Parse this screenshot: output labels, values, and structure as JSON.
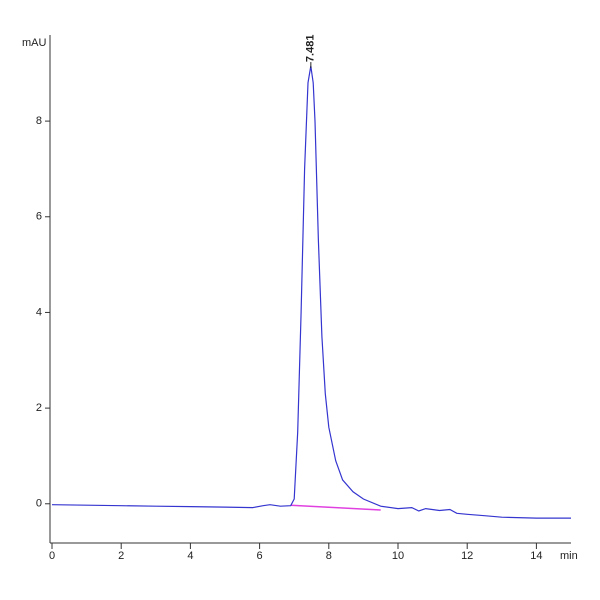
{
  "chart_data": {
    "type": "line",
    "y_label": "mAU",
    "x_label": "min",
    "xlim": [
      0,
      15
    ],
    "ylim": [
      -0.82,
      9.8
    ],
    "xticks": [
      0,
      2,
      4,
      6,
      8,
      10,
      12,
      14
    ],
    "yticks": [
      0,
      2,
      4,
      6,
      8
    ],
    "series": [
      {
        "color": "#3535d0",
        "x": [
          0,
          1,
          2,
          3,
          4,
          5,
          5.8,
          6.1,
          6.3,
          6.6,
          6.9,
          7.0,
          7.1,
          7.2,
          7.3,
          7.4,
          7.481,
          7.55,
          7.6,
          7.7,
          7.8,
          7.9,
          8.0,
          8.2,
          8.4,
          8.7,
          9.0,
          9.5,
          10.0,
          10.4,
          10.6,
          10.8,
          11.2,
          11.5,
          11.7,
          12.0,
          12.5,
          13.0,
          14.0,
          15.0
        ],
        "values": [
          -0.02,
          -0.03,
          -0.04,
          -0.05,
          -0.06,
          -0.07,
          -0.08,
          -0.04,
          -0.02,
          -0.05,
          -0.04,
          0.1,
          1.5,
          4.0,
          7.0,
          8.8,
          9.15,
          8.8,
          8.0,
          5.5,
          3.5,
          2.3,
          1.6,
          0.9,
          0.5,
          0.25,
          0.1,
          -0.05,
          -0.1,
          -0.08,
          -0.15,
          -0.1,
          -0.14,
          -0.12,
          -0.2,
          -0.22,
          -0.25,
          -0.28,
          -0.3,
          -0.3
        ]
      }
    ],
    "baseline": {
      "color": "#e040e0",
      "x": [
        6.9,
        9.5
      ],
      "values": [
        -0.03,
        -0.13
      ]
    },
    "annotations": [
      {
        "label": "7.481",
        "x": 7.481
      }
    ]
  }
}
